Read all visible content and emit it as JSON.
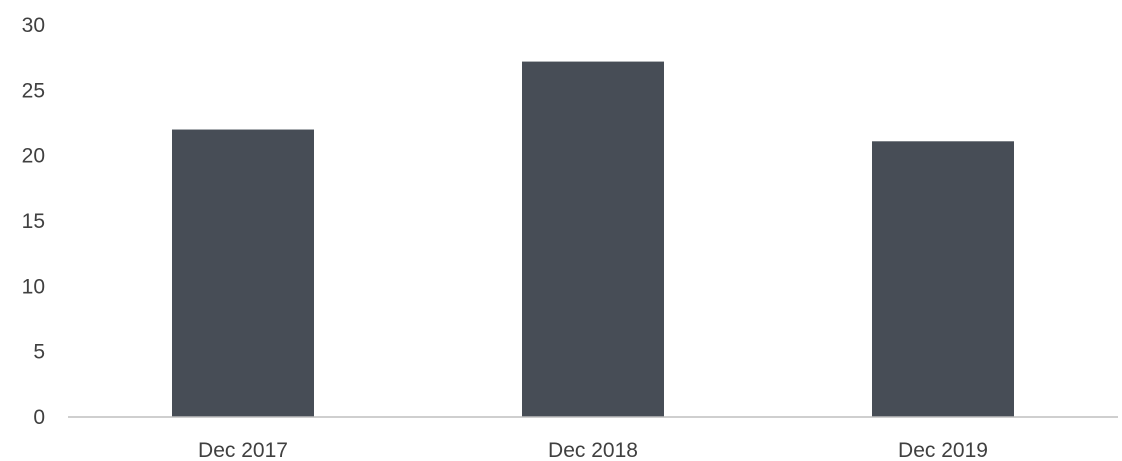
{
  "chart_data": {
    "type": "bar",
    "title": "",
    "xlabel": "",
    "ylabel": "",
    "categories": [
      "Dec 2017",
      "Dec 2018",
      "Dec 2019"
    ],
    "values": [
      22,
      27.2,
      21.1
    ],
    "ylim": [
      0,
      30
    ],
    "yticks": [
      "0",
      "5",
      "10",
      "15",
      "20",
      "25",
      "30"
    ],
    "grid": false,
    "legend": "none",
    "colors": {
      "bar": "#474d56",
      "axis": "#bfbfbf",
      "text": "#404040"
    }
  }
}
